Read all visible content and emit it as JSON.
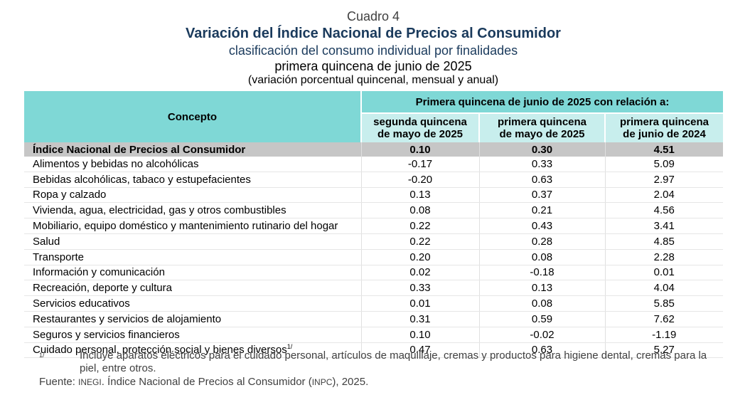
{
  "header": {
    "cuadro": "Cuadro 4",
    "title": "Variación del Índice Nacional de Precios al Consumidor",
    "subtitle": "clasificación del consumo individual por finalidades",
    "period": "primera quincena de junio de 2025",
    "units": "(variación porcentual quincenal, mensual y anual)"
  },
  "table": {
    "concept_header": "Concepto",
    "group_header": "Primera quincena de junio de 2025 con relación a:",
    "col1_line1": "segunda quincena",
    "col1_line2": "de mayo de 2025",
    "col2_line1": "primera quincena",
    "col2_line2": "de mayo de 2025",
    "col3_line1": "primera quincena",
    "col3_line2": "de junio de 2024",
    "rows": [
      {
        "label": "Índice Nacional de Precios al Consumidor",
        "v1": "0.10",
        "v2": "0.30",
        "v3": "4.51"
      },
      {
        "label": "Alimentos y bebidas no alcohólicas",
        "v1": "-0.17",
        "v2": "0.33",
        "v3": "5.09"
      },
      {
        "label": "Bebidas alcohólicas, tabaco y estupefacientes",
        "v1": "-0.20",
        "v2": "0.63",
        "v3": "2.97"
      },
      {
        "label": "Ropa y calzado",
        "v1": "0.13",
        "v2": "0.37",
        "v3": "2.04"
      },
      {
        "label": "Vivienda, agua, electricidad, gas y otros combustibles",
        "v1": "0.08",
        "v2": "0.21",
        "v3": "4.56"
      },
      {
        "label": "Mobiliario, equipo doméstico y mantenimiento rutinario del hogar",
        "v1": "0.22",
        "v2": "0.43",
        "v3": "3.41"
      },
      {
        "label": "Salud",
        "v1": "0.22",
        "v2": "0.28",
        "v3": "4.85"
      },
      {
        "label": "Transporte",
        "v1": "0.20",
        "v2": "0.08",
        "v3": "2.28"
      },
      {
        "label": "Información y comunicación",
        "v1": "0.02",
        "v2": "-0.18",
        "v3": "0.01"
      },
      {
        "label": "Recreación, deporte y cultura",
        "v1": "0.33",
        "v2": "0.13",
        "v3": "4.04"
      },
      {
        "label": "Servicios educativos",
        "v1": "0.01",
        "v2": "0.08",
        "v3": "5.85"
      },
      {
        "label": "Restaurantes y servicios de alojamiento",
        "v1": "0.31",
        "v2": "0.59",
        "v3": "7.62"
      },
      {
        "label": "Seguros y servicios financieros",
        "v1": "0.10",
        "v2": "-0.02",
        "v3": "-1.19"
      },
      {
        "label": "Cuidado personal, protección social y bienes diversos",
        "footnote": "1/",
        "v1": "0.47",
        "v2": "0.63",
        "v3": "5.27"
      }
    ]
  },
  "footnote": {
    "mark": "1/",
    "text": "Incluye aparatos eléctricos para el cuidado personal, artículos de maquillaje, cremas y productos para higiene dental, cremas para la piel, entre otros."
  },
  "source": {
    "label": "Fuente:",
    "org": "INEGI",
    "text_before": ". Índice Nacional de Precios al Consumidor (",
    "abbr": "INPC",
    "text_after": "), 2025."
  }
}
